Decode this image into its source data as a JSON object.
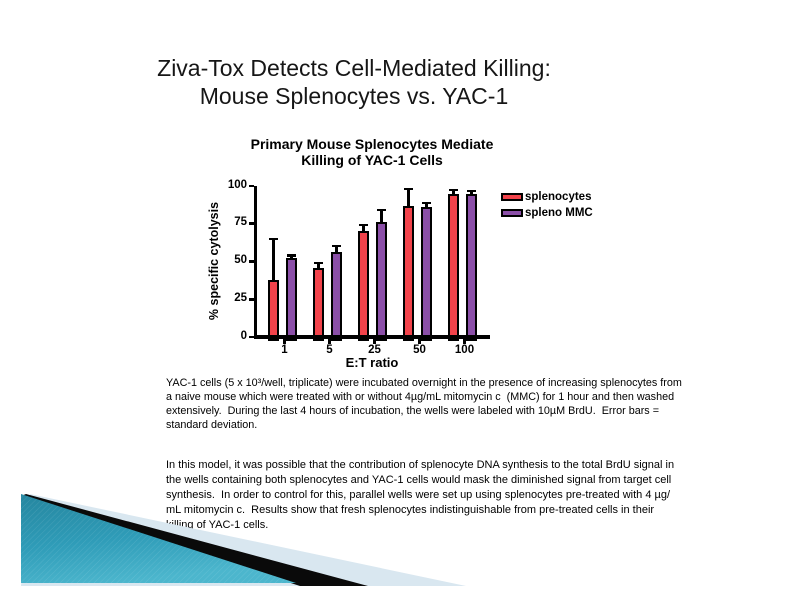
{
  "slide": {
    "title_line1": "Ziva-Tox Detects Cell-Mediated Killing:",
    "title_line2": "Mouse Splenocytes vs. YAC-1",
    "caption": "YAC-1 cells (5 x 10³/well, triplicate) were incubated overnight in the presence of increasing splenocytes from\na naive mouse which were treated with or without 4µg/mL mitomycin c  (MMC) for 1 hour and then washed\nextensively.  During the last 4 hours of incubation, the wells were labeled with 10µM BrdU.  Error bars =\nstandard deviation.",
    "body": "In this model, it was possible that the contribution of splenocyte DNA synthesis to the total BrdU signal in\nthe wells containing both splenocytes and YAC-1 cells would mask the diminished signal from target cell\nsynthesis.  In order to control for this, parallel wells were set up using splenocytes pre-treated with 4 µg/\nmL mitomycin c.  Results show that fresh splenocytes indistinguishable from pre-treated cells in their\nkilling of YAC-1 cells."
  },
  "chart_data": {
    "type": "bar",
    "title": "Primary Mouse Splenocytes Mediate\nKilling of YAC-1 Cells",
    "xlabel": "E:T ratio",
    "ylabel": "% specific cytolysis",
    "categories": [
      "1",
      "5",
      "25",
      "50",
      "100"
    ],
    "series": [
      {
        "name": "splenocytes",
        "color": "#F2434B",
        "values": [
          38,
          46,
          70,
          87,
          95
        ],
        "error_sd": [
          27,
          3,
          4,
          11,
          2.5
        ]
      },
      {
        "name": "spleno MMC",
        "color": "#8B4FA8",
        "values": [
          52,
          56,
          76,
          86,
          95
        ],
        "error_sd": [
          2,
          4,
          8,
          2.5,
          1.5
        ]
      }
    ],
    "ylim": [
      0,
      100
    ],
    "yticks": [
      0,
      25,
      50,
      75,
      100
    ],
    "legend_position": "right",
    "error_bars": "standard deviation, upper only",
    "grid": false
  },
  "colors": {
    "accent_teal_dark": "#25869F",
    "accent_teal_light": "#4CB6CD",
    "pale_blue": "#D9E7F0",
    "swoosh_black": "#0A0A0A"
  }
}
